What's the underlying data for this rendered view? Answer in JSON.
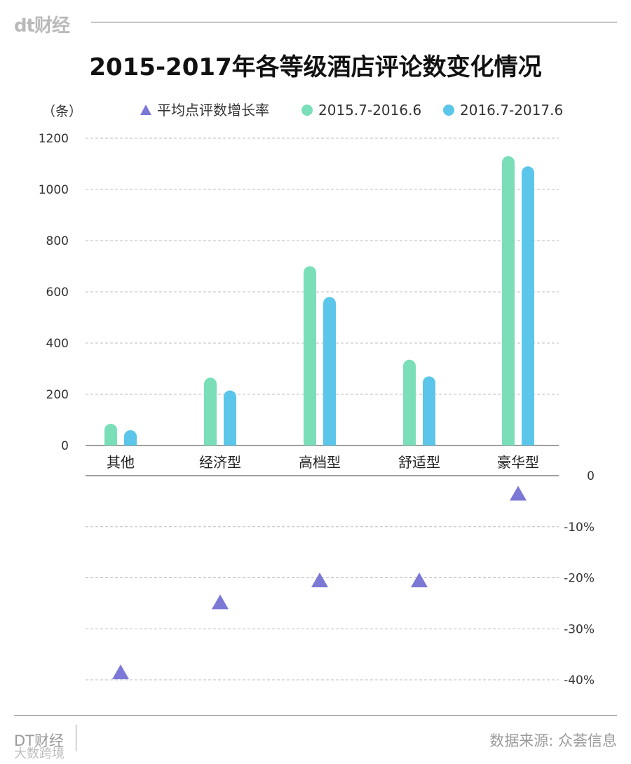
{
  "brand": "dt财经",
  "title": "2015-2017年各等级酒店评论数变化情况",
  "footer": {
    "left": "DT财经",
    "source": "数据来源: 众荟信息"
  },
  "watermark": "大数跨境",
  "colors": {
    "series1": "#7adfb8",
    "series2": "#5bc6ea",
    "growth": "#7b78d6",
    "grid": "#bdbdbd"
  },
  "chart_data": [
    {
      "type": "bar",
      "y_unit": "（条）",
      "categories": [
        "其他",
        "经济型",
        "高档型",
        "舒适型",
        "豪华型"
      ],
      "legend": [
        "平均点评数增长率",
        "2015.7-2016.6",
        "2016.7-2017.6"
      ],
      "series": [
        {
          "name": "2015.7-2016.6",
          "values": [
            85,
            265,
            700,
            335,
            1130
          ]
        },
        {
          "name": "2016.7-2017.6",
          "values": [
            60,
            215,
            580,
            270,
            1090
          ]
        }
      ],
      "ylim": [
        0,
        1200
      ],
      "yticks": [
        "0",
        "200",
        "400",
        "600",
        "800",
        "1000",
        "1200"
      ],
      "grid": true
    },
    {
      "type": "scatter",
      "marker": "triangle",
      "categories": [
        "其他",
        "经济型",
        "高档型",
        "舒适型",
        "豪华型"
      ],
      "series": [
        {
          "name": "平均点评数增长率",
          "values": [
            -38.5,
            -24.8,
            -20.5,
            -20.5,
            -3.5
          ]
        }
      ],
      "ylim": [
        -40,
        0
      ],
      "yticks": [
        "0",
        "-10%",
        "-20%",
        "-30%",
        "-40%"
      ],
      "grid": true
    }
  ]
}
